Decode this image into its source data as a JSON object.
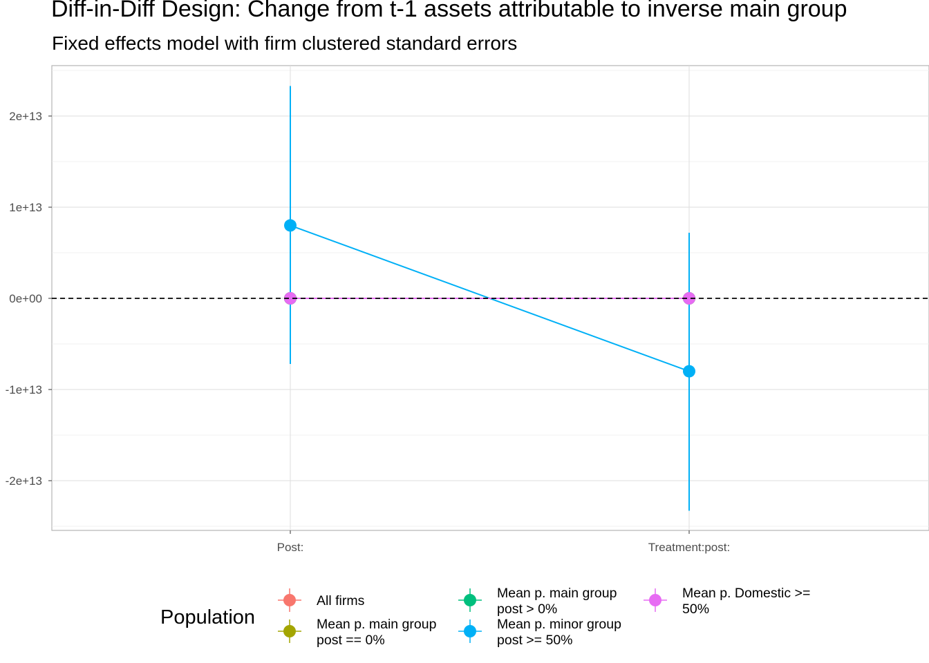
{
  "chart_data": {
    "type": "scatter",
    "title": "Diff-in-Diff Design: Change from t-1 assets attributable to inverse main group",
    "subtitle": "Fixed effects model with firm clustered standard errors",
    "xlabel": "",
    "ylabel": "",
    "categories": [
      "Post:",
      "Treatment:post:"
    ],
    "ylim": [
      -25000000000000.0,
      25000000000000.0
    ],
    "y_ticks": [
      20000000000000.0,
      10000000000000.0,
      0,
      -10000000000000.0,
      -20000000000000.0
    ],
    "y_tick_labels": [
      "2e+13",
      "1e+13",
      "0e+00",
      "-1e+13",
      "-2e+13"
    ],
    "reference_line": 0,
    "grid": true,
    "legend_title": "Population",
    "legend_position": "bottom",
    "series": [
      {
        "name": "All firms",
        "color": "#F8766D",
        "values": [
          0,
          0
        ],
        "lower": [
          0,
          0
        ],
        "upper": [
          0,
          0
        ]
      },
      {
        "name": "Mean p. main group post == 0%",
        "color": "#A3A500",
        "values": [
          0,
          0
        ],
        "lower": [
          0,
          0
        ],
        "upper": [
          0,
          0
        ]
      },
      {
        "name": "Mean p. main group post > 0%",
        "color": "#00BF7D",
        "values": [
          0,
          0
        ],
        "lower": [
          0,
          0
        ],
        "upper": [
          0,
          0
        ]
      },
      {
        "name": "Mean p. minor group post >= 50%",
        "color": "#00B0F6",
        "values": [
          8000000000000.0,
          -8000000000000.0
        ],
        "lower": [
          -7200000000000.0,
          -23300000000000.0
        ],
        "upper": [
          23300000000000.0,
          7200000000000.0
        ]
      },
      {
        "name": "Mean p. Domestic >= 50%",
        "color": "#E76BF3",
        "values": [
          0,
          0
        ],
        "lower": [
          0,
          0
        ],
        "upper": [
          0,
          0
        ]
      }
    ]
  },
  "legend_labels": [
    [
      "All firms"
    ],
    [
      "Mean p. main group",
      "post == 0%"
    ],
    [
      "Mean p. main group",
      "post > 0%"
    ],
    [
      "Mean p. minor group",
      "post >= 50%"
    ],
    [
      "Mean p. Domestic >=",
      "50%"
    ]
  ]
}
